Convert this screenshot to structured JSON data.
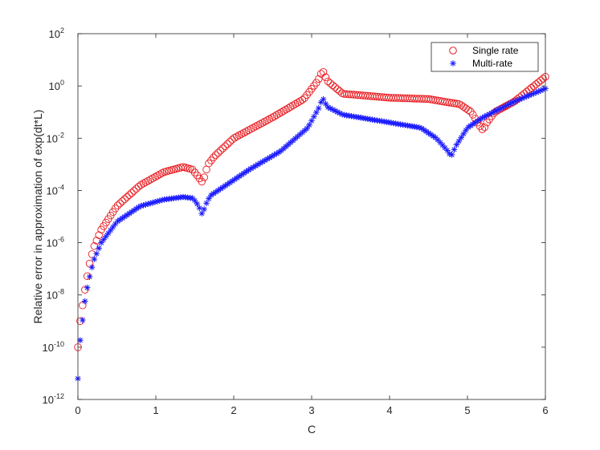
{
  "chart_data": {
    "type": "scatter",
    "title": "",
    "xlabel": "C",
    "ylabel": "Relative error in approximation of exp(dt*L)",
    "xlim": [
      0,
      6
    ],
    "ylim_log10": [
      -12,
      2
    ],
    "yscale": "log",
    "grid": false,
    "legend_position": "top-right",
    "x_ticks": [
      "0",
      "1",
      "2",
      "3",
      "4",
      "5",
      "6"
    ],
    "y_ticks": [
      {
        "base": "10",
        "exp": "-12"
      },
      {
        "base": "10",
        "exp": "-10"
      },
      {
        "base": "10",
        "exp": "-8"
      },
      {
        "base": "10",
        "exp": "-6"
      },
      {
        "base": "10",
        "exp": "-4"
      },
      {
        "base": "10",
        "exp": "-2"
      },
      {
        "base": "10",
        "exp": "0"
      },
      {
        "base": "10",
        "exp": "2"
      }
    ],
    "series": [
      {
        "name": "Single rate",
        "marker": "circle",
        "color": "#e8191e",
        "x_range": [
          0.0,
          6.0
        ],
        "n_points": 201,
        "log10_key_points": [
          [
            0.0,
            -10
          ],
          [
            0.03,
            -9.0
          ],
          [
            0.06,
            -8.4
          ],
          [
            0.1,
            -7.6
          ],
          [
            0.15,
            -6.8
          ],
          [
            0.2,
            -6.2
          ],
          [
            0.3,
            -5.5
          ],
          [
            0.5,
            -4.6
          ],
          [
            0.8,
            -3.8
          ],
          [
            1.1,
            -3.3
          ],
          [
            1.35,
            -3.1
          ],
          [
            1.47,
            -3.2
          ],
          [
            1.55,
            -3.5
          ],
          [
            1.6,
            -3.7
          ],
          [
            1.62,
            -3.5
          ],
          [
            1.67,
            -3.0
          ],
          [
            1.75,
            -2.7
          ],
          [
            2.0,
            -2.0
          ],
          [
            2.5,
            -1.2
          ],
          [
            2.9,
            -0.5
          ],
          [
            3.08,
            0.2
          ],
          [
            3.14,
            0.6
          ],
          [
            3.2,
            0.2
          ],
          [
            3.4,
            -0.3
          ],
          [
            4.0,
            -0.45
          ],
          [
            4.5,
            -0.5
          ],
          [
            4.9,
            -0.7
          ],
          [
            5.05,
            -1.0
          ],
          [
            5.15,
            -1.5
          ],
          [
            5.2,
            -1.7
          ],
          [
            5.25,
            -1.4
          ],
          [
            5.35,
            -1.0
          ],
          [
            5.6,
            -0.6
          ],
          [
            6.0,
            0.35
          ]
        ]
      },
      {
        "name": "Multi-rate",
        "marker": "asterisk",
        "color": "#1a1aff",
        "x_range": [
          0.0,
          6.0
        ],
        "n_points": 201,
        "log10_key_points": [
          [
            0.0,
            -11.2
          ],
          [
            0.02,
            -10.0
          ],
          [
            0.05,
            -9.2
          ],
          [
            0.1,
            -8.0
          ],
          [
            0.15,
            -7.3
          ],
          [
            0.2,
            -6.7
          ],
          [
            0.3,
            -6.0
          ],
          [
            0.5,
            -5.2
          ],
          [
            0.8,
            -4.6
          ],
          [
            1.1,
            -4.35
          ],
          [
            1.35,
            -4.25
          ],
          [
            1.48,
            -4.3
          ],
          [
            1.55,
            -4.6
          ],
          [
            1.6,
            -4.95
          ],
          [
            1.63,
            -4.6
          ],
          [
            1.7,
            -4.2
          ],
          [
            1.85,
            -3.9
          ],
          [
            2.2,
            -3.2
          ],
          [
            2.6,
            -2.5
          ],
          [
            2.95,
            -1.6
          ],
          [
            3.1,
            -0.8
          ],
          [
            3.14,
            -0.45
          ],
          [
            3.2,
            -0.8
          ],
          [
            3.4,
            -1.1
          ],
          [
            4.0,
            -1.4
          ],
          [
            4.4,
            -1.6
          ],
          [
            4.6,
            -2.0
          ],
          [
            4.75,
            -2.5
          ],
          [
            4.79,
            -2.7
          ],
          [
            4.85,
            -2.3
          ],
          [
            5.0,
            -1.6
          ],
          [
            5.2,
            -1.2
          ],
          [
            5.6,
            -0.6
          ],
          [
            6.0,
            -0.1
          ]
        ]
      }
    ]
  }
}
